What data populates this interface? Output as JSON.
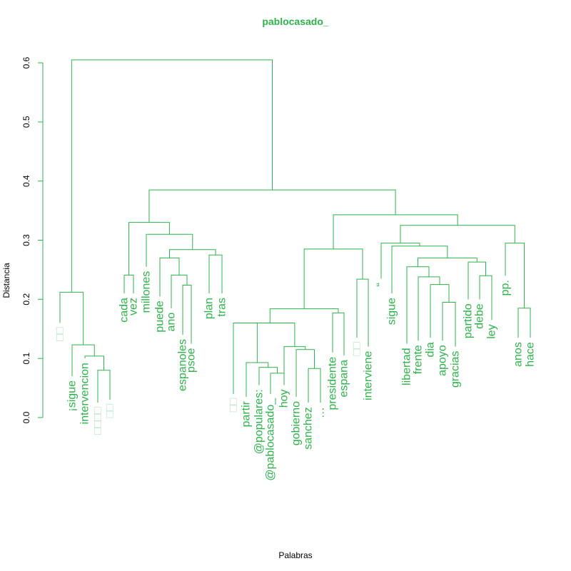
{
  "colors": {
    "accent": "#2db34a",
    "leaf_text": "#2db34a",
    "leaf_text_light": "#b9e4c1",
    "axis": "#2db34a",
    "axis_text": "#000000"
  },
  "chart_data": {
    "type": "dendrogram",
    "title": "pablocasado_",
    "xlabel": "Palabras",
    "ylabel": "Distancia",
    "ylim": [
      0,
      0.63
    ],
    "yticks": [
      0.0,
      0.1,
      0.2,
      0.3,
      0.4,
      0.5,
      0.6
    ],
    "ytick_labels": [
      "0.0",
      "0.1",
      "0.2",
      "0.3",
      "0.4",
      "0.5",
      "0.6"
    ],
    "leaves": [
      {
        "label": "□□",
        "faded": true
      },
      {
        "label": "¡sigue",
        "faded": false
      },
      {
        "label": "intervencion",
        "faded": false
      },
      {
        "label": "□□□□",
        "faded": true
      },
      {
        "label": "□□",
        "faded": true
      },
      {
        "label": "cada",
        "faded": false
      },
      {
        "label": "vez",
        "faded": false
      },
      {
        "label": "millones",
        "faded": false
      },
      {
        "label": "puede",
        "faded": false
      },
      {
        "label": "ano",
        "faded": false
      },
      {
        "label": "espanoles",
        "faded": false
      },
      {
        "label": "psoe",
        "faded": false
      },
      {
        "label": "plan",
        "faded": false
      },
      {
        "label": "tras",
        "faded": false
      },
      {
        "label": "□□",
        "faded": true
      },
      {
        "label": "partir",
        "faded": false
      },
      {
        "label": "@populares:",
        "faded": false
      },
      {
        "label": "@pablocasado_",
        "faded": false
      },
      {
        "label": "hoy",
        "faded": false
      },
      {
        "label": "gobierno",
        "faded": false
      },
      {
        "label": "sanchez",
        "faded": false
      },
      {
        "label": "…",
        "faded": false
      },
      {
        "label": "presidente",
        "faded": false
      },
      {
        "label": "espana",
        "faded": false
      },
      {
        "label": "□□",
        "faded": true
      },
      {
        "label": "interviene",
        "faded": false
      },
      {
        "label": "“",
        "faded": false
      },
      {
        "label": "sigue",
        "faded": false
      },
      {
        "label": "libertad",
        "faded": false
      },
      {
        "label": "frente",
        "faded": false
      },
      {
        "label": "dia",
        "faded": false
      },
      {
        "label": "apoyo",
        "faded": false
      },
      {
        "label": "gracias",
        "faded": false
      },
      {
        "label": "partido",
        "faded": false
      },
      {
        "label": "debe",
        "faded": false
      },
      {
        "label": "ley",
        "faded": false
      },
      {
        "label": "pp.",
        "faded": false
      },
      {
        "label": "anos",
        "faded": false
      },
      {
        "label": "hace",
        "faded": false
      }
    ],
    "leaf_heights": [
      0.16,
      0.07,
      0.1,
      0.025,
      0.03,
      0.21,
      0.21,
      0.255,
      0.205,
      0.185,
      0.14,
      0.125,
      0.21,
      0.21,
      0.04,
      0.035,
      0.055,
      0.04,
      0.055,
      0.035,
      0.025,
      0.025,
      0.11,
      0.105,
      0.135,
      0.12,
      0.235,
      0.21,
      0.125,
      0.13,
      0.135,
      0.13,
      0.12,
      0.2,
      0.2,
      0.165,
      0.24,
      0.135,
      0.135
    ],
    "merges": [
      [
        -4,
        -5,
        0.08
      ],
      [
        -3,
        1,
        0.104
      ],
      [
        -2,
        2,
        0.123
      ],
      [
        -1,
        3,
        0.212
      ],
      [
        -6,
        -7,
        0.241
      ],
      [
        -11,
        -12,
        0.224
      ],
      [
        -10,
        6,
        0.241
      ],
      [
        -9,
        7,
        0.27
      ],
      [
        -13,
        -14,
        0.275
      ],
      [
        8,
        9,
        0.284
      ],
      [
        -8,
        10,
        0.31
      ],
      [
        5,
        11,
        0.33
      ],
      [
        -18,
        -19,
        0.075
      ],
      [
        -17,
        13,
        0.085
      ],
      [
        -16,
        14,
        0.093
      ],
      [
        -15,
        15,
        0.16
      ],
      [
        -21,
        -22,
        0.083
      ],
      [
        -20,
        17,
        0.115
      ],
      [
        -19,
        18,
        0.12
      ],
      [
        16,
        19,
        0.16
      ],
      [
        -23,
        -24,
        0.177
      ],
      [
        20,
        21,
        0.184
      ],
      [
        -25,
        -26,
        0.234
      ],
      [
        22,
        23,
        0.285
      ],
      [
        -32,
        -33,
        0.195
      ],
      [
        -31,
        25,
        0.225
      ],
      [
        -30,
        26,
        0.238
      ],
      [
        -29,
        27,
        0.255
      ],
      [
        -35,
        -36,
        0.24
      ],
      [
        -34,
        29,
        0.263
      ],
      [
        28,
        30,
        0.27
      ],
      [
        -28,
        31,
        0.29
      ],
      [
        -27,
        32,
        0.295
      ],
      [
        -38,
        -39,
        0.185
      ],
      [
        -37,
        34,
        0.295
      ],
      [
        33,
        35,
        0.325
      ],
      [
        24,
        36,
        0.343
      ],
      [
        12,
        37,
        0.385
      ],
      [
        4,
        38,
        0.605
      ]
    ]
  }
}
